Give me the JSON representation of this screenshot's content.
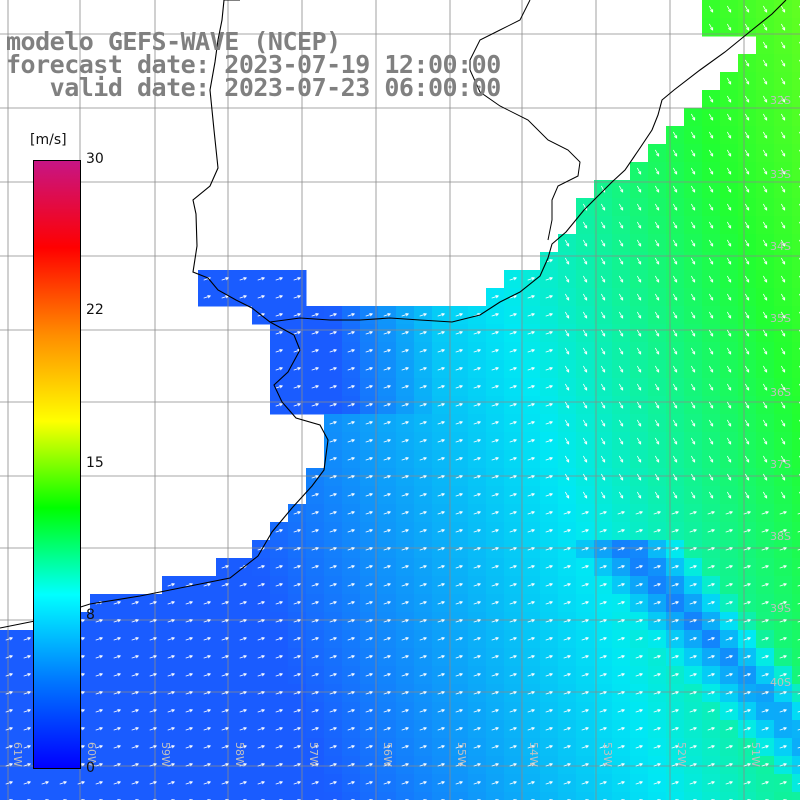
{
  "title": {
    "line1": "modelo GEFS-WAVE (NCEP)",
    "line2": "forecast date: 2023-07-19 12:00:00",
    "line3": "   valid date: 2023-07-23 06:00:00"
  },
  "colorbar": {
    "unit": "[m/s]",
    "ticks": [
      "30",
      "22",
      "15",
      "8",
      "0"
    ],
    "gradient": [
      "#0000ff",
      "#0077ff",
      "#00ffff",
      "#00ff00",
      "#ffff00",
      "#ff8c00",
      "#ff0000",
      "#c71585"
    ]
  },
  "grid": {
    "lat_labels": [
      "32S",
      "33S",
      "34S",
      "35S",
      "36S",
      "37S",
      "38S",
      "39S",
      "40S"
    ],
    "lon_labels": [
      "61W",
      "60W",
      "59W",
      "58W",
      "57W",
      "56W",
      "55W",
      "54W",
      "53W",
      "52W",
      "51W"
    ]
  },
  "field": {
    "quantity": "wind speed",
    "units": "m/s",
    "colors": {
      "low": "#0050ff",
      "mid": "#00e0f0",
      "high": "#00ff00",
      "land": "#ffffff",
      "coast": "#000000",
      "arrows": "#ffffff"
    }
  }
}
